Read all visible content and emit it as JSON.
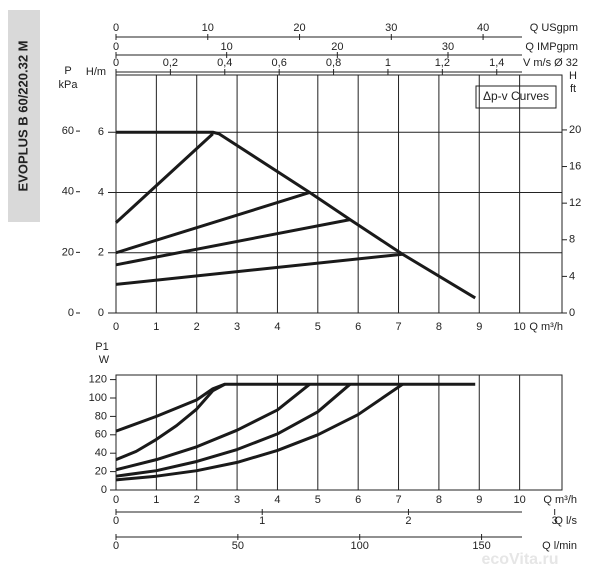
{
  "side_label": "EVOPLUS B 60/220.32 M",
  "watermark": "ecoVita.ru",
  "chart_data": [
    {
      "type": "line",
      "legend_box": "Δp-v Curves",
      "color": "#1a1a1a",
      "grid": true,
      "x_label": "Q m³/h",
      "xlim": [
        0,
        11.05
      ],
      "xticks": [
        0,
        1,
        2,
        3,
        4,
        5,
        6,
        7,
        8,
        9,
        10
      ],
      "y_label": "H/m",
      "ylim": [
        0,
        7.9
      ],
      "yticks": [
        0,
        2,
        4,
        6
      ],
      "p_label_top": "P",
      "p_label": "kPa",
      "plim": [
        0,
        78.5
      ],
      "pticks": [
        0,
        20,
        40,
        60
      ],
      "ft_label_top": "H",
      "ft_label": "ft",
      "ftlim": [
        0,
        26
      ],
      "ftticks": [
        0,
        4,
        8,
        12,
        16,
        20
      ],
      "top_axes": [
        {
          "label": "Q USgpm",
          "lim": [
            0,
            48.6
          ],
          "ticks": [
            0,
            10,
            20,
            30,
            40
          ]
        },
        {
          "label": "Q IMPgpm",
          "lim": [
            0,
            40.3
          ],
          "ticks": [
            0,
            10,
            20,
            30
          ]
        },
        {
          "label": "V m/s Ø 32",
          "lim": [
            0,
            1.64
          ],
          "ticks": [
            0,
            {
              "value": 0.2,
              "label": "0,2"
            },
            {
              "value": 0.4,
              "label": "0,4"
            },
            {
              "value": 0.6,
              "label": "0,6"
            },
            {
              "value": 0.8,
              "label": "0,8"
            },
            1,
            {
              "value": 1.2,
              "label": "1,2"
            },
            {
              "value": 1.4,
              "label": "1,4"
            }
          ]
        }
      ],
      "series": [
        {
          "x": [
            0,
            2.4,
            2.55,
            4.8,
            5.8,
            7.1,
            8.9
          ],
          "values": [
            6,
            6,
            5.95,
            4,
            3.1,
            1.95,
            0.5
          ]
        },
        {
          "x": [
            0,
            2.4
          ],
          "values": [
            3,
            5.95
          ]
        },
        {
          "x": [
            0,
            4.8
          ],
          "values": [
            2,
            4
          ]
        },
        {
          "x": [
            0,
            5.8
          ],
          "values": [
            1.6,
            3.1
          ]
        },
        {
          "x": [
            0,
            7.1
          ],
          "values": [
            0.95,
            1.95
          ]
        }
      ]
    },
    {
      "type": "line",
      "color": "#1a1a1a",
      "x_label": "Q m³/h",
      "xlim": [
        0,
        11.05
      ],
      "xticks": [
        0,
        1,
        2,
        3,
        4,
        5,
        6,
        7,
        8,
        9,
        10
      ],
      "y_label_top": "P1",
      "y_label": "W",
      "ylim": [
        0,
        125
      ],
      "yticks": [
        0,
        20,
        40,
        60,
        80,
        100,
        120
      ],
      "bottom_axes": [
        {
          "label": "Q l/s",
          "lim": [
            0,
            3.05
          ],
          "ticks": [
            0,
            1,
            2,
            3
          ]
        },
        {
          "label": "Q l/min",
          "lim": [
            0,
            183
          ],
          "ticks": [
            0,
            50,
            100,
            150
          ]
        }
      ],
      "series": [
        {
          "x": [
            0,
            1,
            2,
            2.4,
            2.7,
            8.9
          ],
          "values": [
            64,
            80,
            98,
            110,
            115,
            115
          ]
        },
        {
          "x": [
            0,
            0.5,
            1,
            1.5,
            2,
            2.4,
            2.7
          ],
          "values": [
            33,
            42,
            55,
            70,
            88,
            108,
            115
          ]
        },
        {
          "x": [
            0,
            1,
            2,
            3,
            4,
            4.8
          ],
          "values": [
            22,
            33,
            47,
            65,
            87,
            115
          ]
        },
        {
          "x": [
            0,
            1,
            2,
            3,
            4,
            5,
            5.8
          ],
          "values": [
            15,
            21,
            31,
            44,
            61,
            85,
            115
          ]
        },
        {
          "x": [
            0,
            1,
            2,
            3,
            4,
            5,
            6,
            7.1
          ],
          "values": [
            11,
            15,
            21,
            30,
            43,
            60,
            82,
            115
          ]
        }
      ]
    }
  ]
}
